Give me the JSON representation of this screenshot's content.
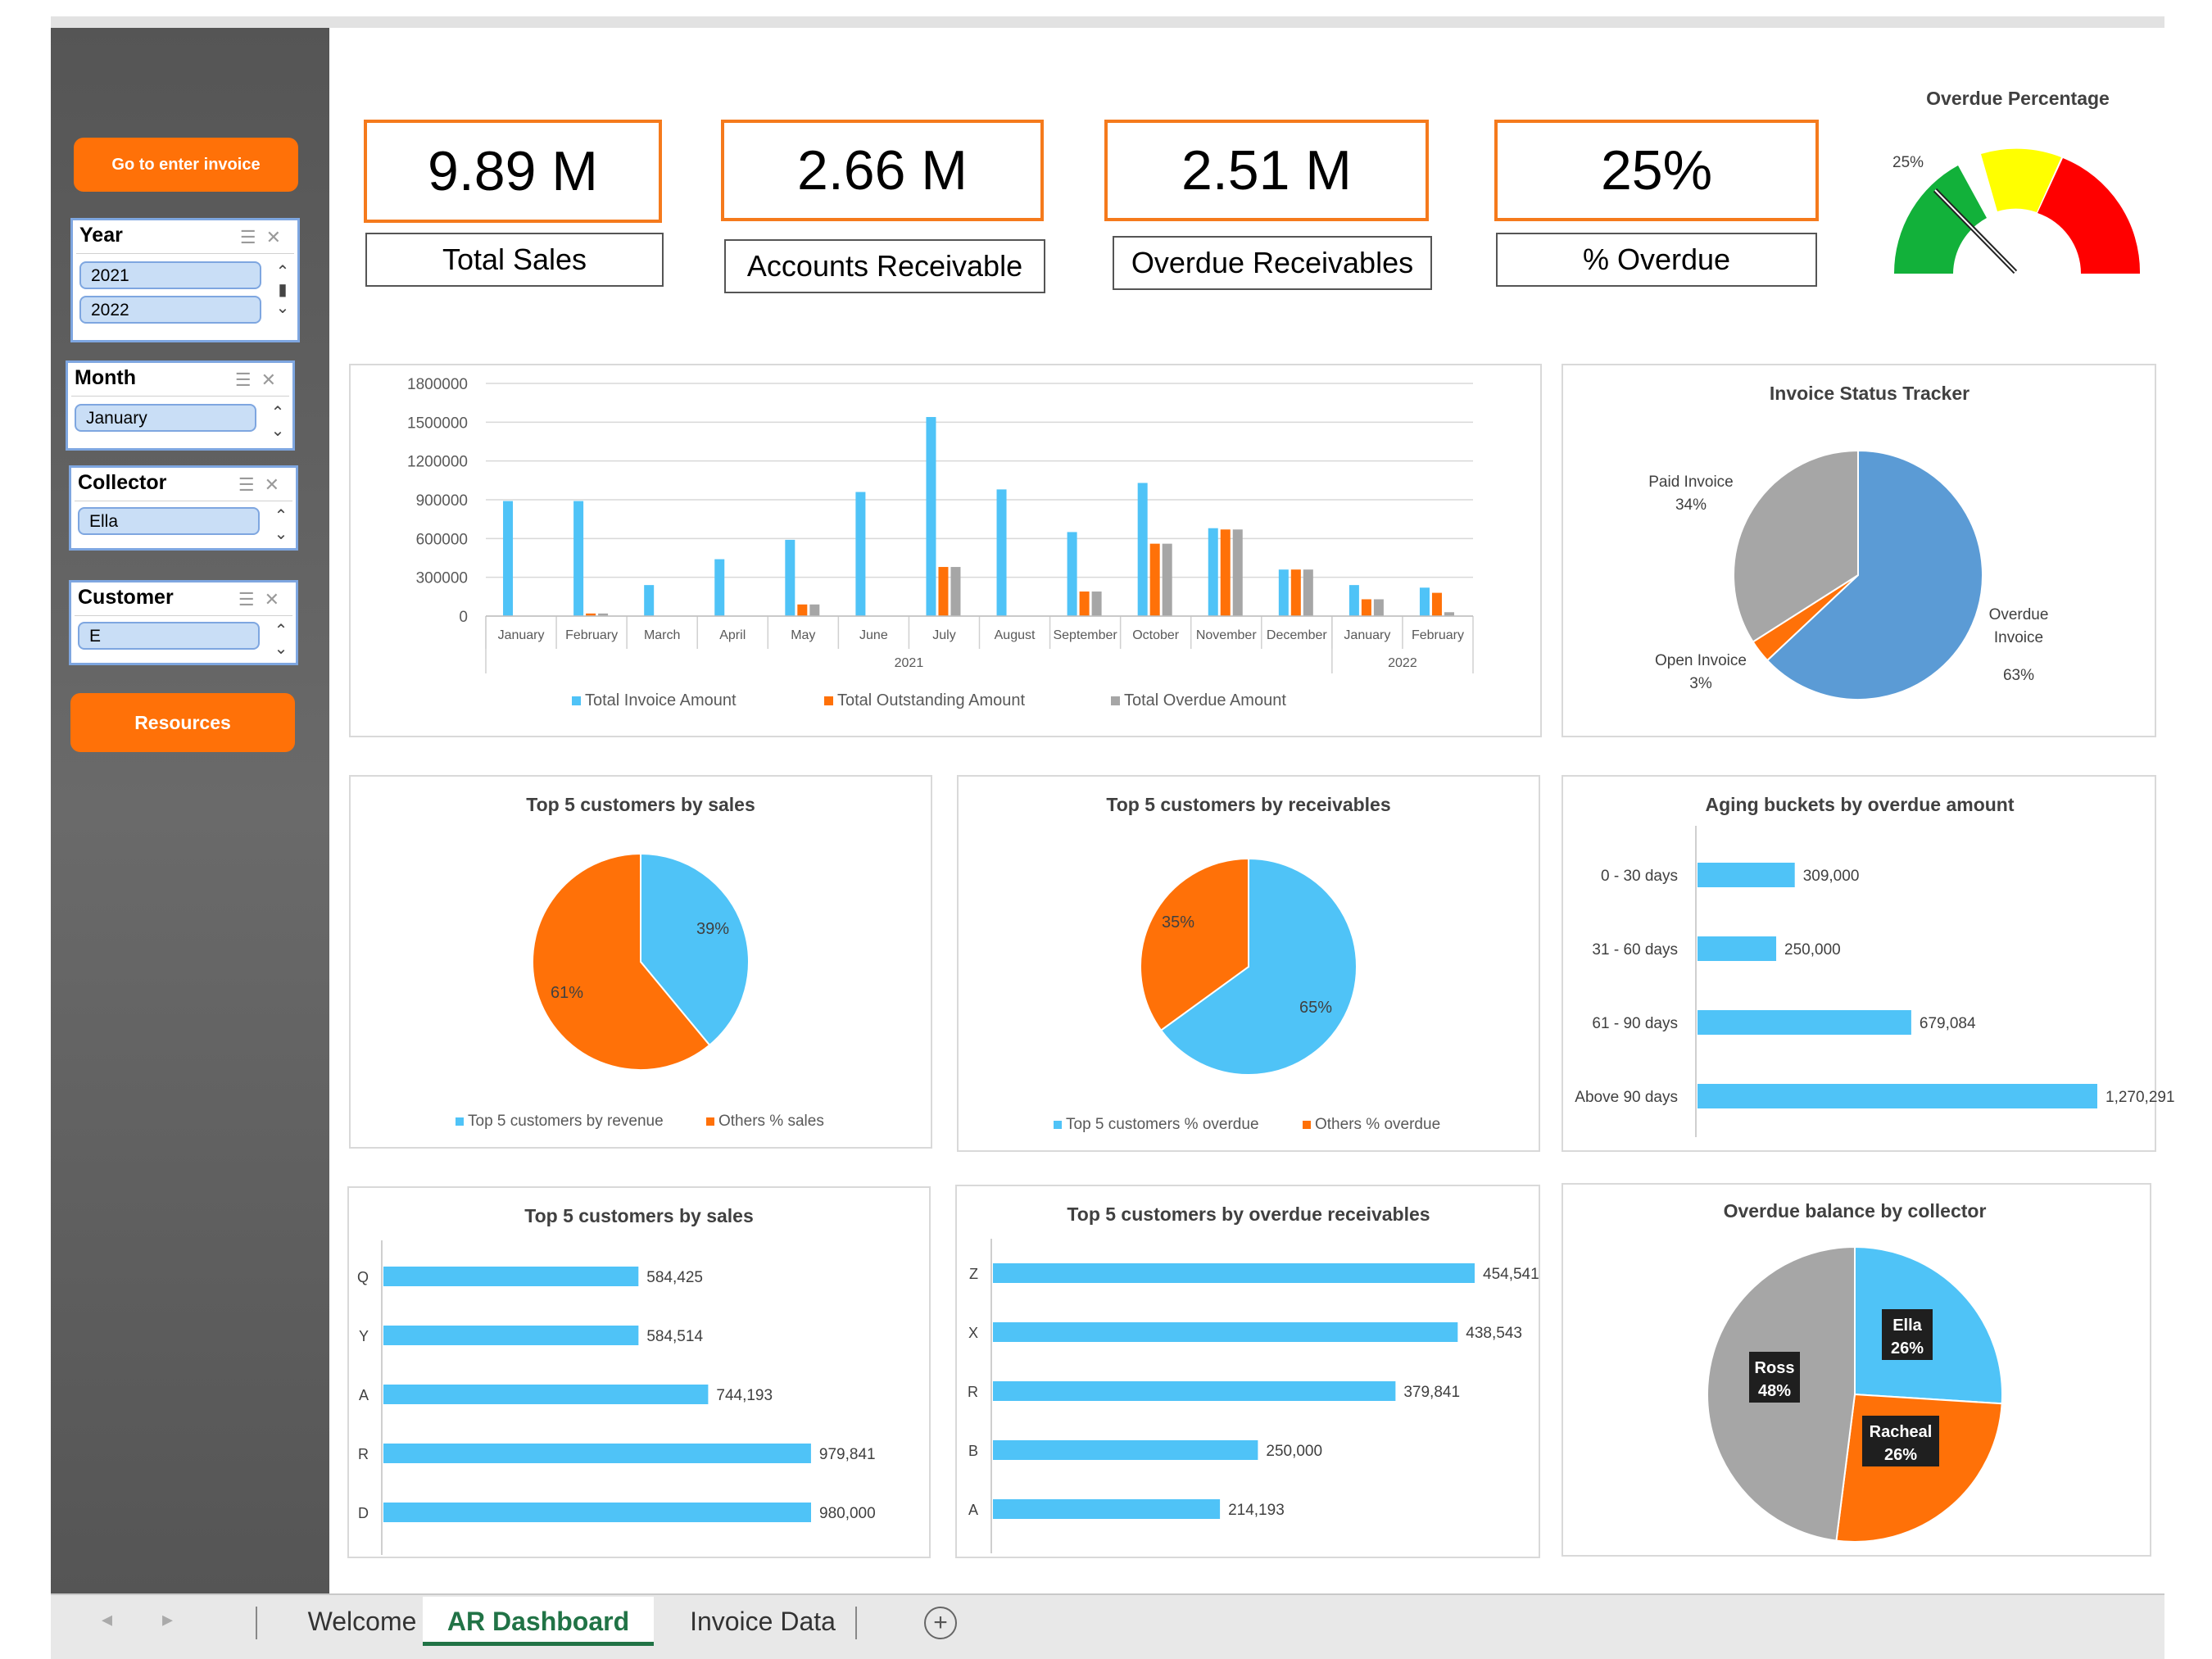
{
  "sidebar": {
    "enter_invoice_button": "Go to enter invoice",
    "resources_button": "Resources",
    "slicers": {
      "year": {
        "title": "Year",
        "items": [
          "2021",
          "2022"
        ]
      },
      "month": {
        "title": "Month",
        "items": [
          "January"
        ]
      },
      "collector": {
        "title": "Collector",
        "items": [
          "Ella"
        ]
      },
      "customer": {
        "title": "Customer",
        "items": [
          "E"
        ]
      }
    }
  },
  "kpis": [
    {
      "value": "9.89 M",
      "label": "Total Sales"
    },
    {
      "value": "2.66 M",
      "label": "Accounts Receivable"
    },
    {
      "value": "2.51 M",
      "label": "Overdue Receivables"
    },
    {
      "value": "25%",
      "label": "% Overdue"
    }
  ],
  "colors": {
    "blue": "#4fc3f7",
    "orange": "#ff7108",
    "gray": "#a6a6a6",
    "dark_blue": "#5b9bd5",
    "green": "#12b13a",
    "yellow": "#ffff00",
    "red": "#ff0000"
  },
  "gauge": {
    "title": "Overdue Percentage",
    "value_label": "25%",
    "value": 0.25
  },
  "tabs": {
    "welcome": "Welcome",
    "dashboard": "AR Dashboard",
    "invoice_data": "Invoice Data"
  },
  "chart_data": [
    {
      "type": "bar",
      "categories": [
        "January",
        "February",
        "March",
        "April",
        "May",
        "June",
        "July",
        "August",
        "September",
        "October",
        "November",
        "December",
        "January",
        "February"
      ],
      "group_labels": [
        "2021",
        "2022"
      ],
      "series": [
        {
          "name": "Total Invoice Amount",
          "values": [
            890000,
            890000,
            240000,
            440000,
            590000,
            960000,
            1540000,
            980000,
            650000,
            1030000,
            680000,
            360000,
            240000,
            220000
          ]
        },
        {
          "name": "Total Outstanding Amount",
          "values": [
            0,
            20000,
            0,
            0,
            90000,
            0,
            380000,
            0,
            190000,
            560000,
            670000,
            360000,
            130000,
            180000
          ]
        },
        {
          "name": "Total Overdue Amount",
          "values": [
            0,
            20000,
            0,
            0,
            90000,
            0,
            380000,
            0,
            190000,
            560000,
            670000,
            360000,
            130000,
            30000
          ]
        }
      ],
      "yticks": [
        "1800000",
        "1500000",
        "1200000",
        "900000",
        "600000",
        "300000",
        "0"
      ],
      "ylim": [
        0,
        1800000
      ]
    },
    {
      "type": "pie",
      "title": "Invoice Status Tracker",
      "labels": [
        "Overdue Invoice",
        "Open Invoice",
        "Paid Invoice"
      ],
      "values": [
        63,
        3,
        34
      ],
      "value_labels": [
        "63%",
        "3%",
        "34%"
      ]
    },
    {
      "type": "pie",
      "title": "Top 5 customers by sales",
      "labels": [
        "Top 5 customers by revenue",
        "Others % sales"
      ],
      "values": [
        39,
        61
      ],
      "value_labels": [
        "39%",
        "61%"
      ]
    },
    {
      "type": "pie",
      "title": "Top 5 customers by receivables",
      "labels": [
        "Top 5 customers % overdue",
        "Others % overdue"
      ],
      "values": [
        65,
        35
      ],
      "value_labels": [
        "65%",
        "35%"
      ]
    },
    {
      "type": "bar",
      "title": "Aging buckets by overdue amount",
      "categories": [
        "0 - 30 days",
        "31 - 60 days",
        "61 - 90 days",
        "Above 90 days"
      ],
      "values": [
        309000,
        250000,
        679084,
        1270291
      ],
      "value_labels": [
        "309,000",
        "250,000",
        "679,084",
        "1,270,291"
      ]
    },
    {
      "type": "bar",
      "title": "Top 5 customers by sales",
      "categories": [
        "Q",
        "Y",
        "A",
        "R",
        "D"
      ],
      "values": [
        584425,
        584514,
        744193,
        979841,
        980000
      ],
      "value_labels": [
        "584,425",
        "584,514",
        "744,193",
        "979,841",
        "980,000"
      ]
    },
    {
      "type": "bar",
      "title": "Top 5 customers by overdue receivables",
      "categories": [
        "Z",
        "X",
        "R",
        "B",
        "A"
      ],
      "values": [
        454541,
        438543,
        379841,
        250000,
        214193
      ],
      "value_labels": [
        "454,541",
        "438,543",
        "379,841",
        "250,000",
        "214,193"
      ]
    },
    {
      "type": "pie",
      "title": "Overdue balance by collector",
      "labels": [
        "Ella",
        "Racheal",
        "Ross"
      ],
      "values": [
        26,
        26,
        48
      ],
      "value_labels": [
        "26%",
        "26%",
        "48%"
      ]
    }
  ]
}
